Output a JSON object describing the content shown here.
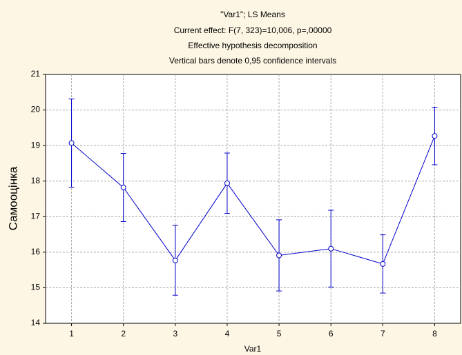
{
  "chart_data": {
    "type": "line",
    "title": "\"Var1\"; LS Means",
    "subtitle": [
      "Current effect: F(7, 323)=10,006, p=,00000",
      "Effective hypothesis decomposition",
      "Vertical bars denote 0,95 confidence intervals"
    ],
    "x_label": "Var1",
    "y_label": "Самооцінка",
    "categories": [
      "1",
      "2",
      "3",
      "4",
      "5",
      "6",
      "7",
      "8"
    ],
    "series": [
      {
        "name": "Var1",
        "color": "#0000cc",
        "values": [
          19.07,
          17.82,
          15.77,
          17.94,
          15.91,
          16.1,
          15.67,
          19.27
        ],
        "errors": [
          1.24,
          0.96,
          0.98,
          0.85,
          1.0,
          1.08,
          0.82,
          0.81
        ]
      }
    ],
    "ylim": [
      14,
      21
    ],
    "yticks": [
      14,
      15,
      16,
      17,
      18,
      19,
      20,
      21
    ],
    "grid": true
  }
}
